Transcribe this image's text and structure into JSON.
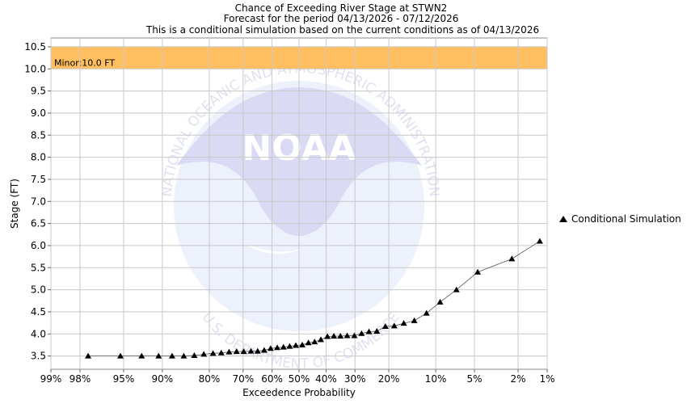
{
  "chart_data": {
    "type": "line",
    "title": [
      "Chance of Exceeding River Stage at STWN2",
      "Forecast for the period 04/13/2026 - 07/12/2026",
      "This is a conditional simulation based on the current conditions as of 04/13/2026"
    ],
    "xlabel": "Exceedence Probability",
    "ylabel": "Stage (FT)",
    "x_scale": "normal-probability",
    "x_range": [
      99,
      1
    ],
    "x_ticks": [
      {
        "value": 99,
        "label": "99%"
      },
      {
        "value": 98,
        "label": "98%"
      },
      {
        "value": 95,
        "label": "95%"
      },
      {
        "value": 90,
        "label": "90%"
      },
      {
        "value": 80,
        "label": "80%"
      },
      {
        "value": 70,
        "label": "70%"
      },
      {
        "value": 60,
        "label": "60%"
      },
      {
        "value": 50,
        "label": "50%"
      },
      {
        "value": 40,
        "label": "40%"
      },
      {
        "value": 30,
        "label": "30%"
      },
      {
        "value": 20,
        "label": "20%"
      },
      {
        "value": 10,
        "label": "10%"
      },
      {
        "value": 5,
        "label": "5%"
      },
      {
        "value": 2,
        "label": "2%"
      },
      {
        "value": 1,
        "label": "1%"
      }
    ],
    "ylim": [
      3.2,
      10.7
    ],
    "y_ticks": [
      {
        "value": 3.5,
        "label": "3.5"
      },
      {
        "value": 4.0,
        "label": "4.0"
      },
      {
        "value": 4.5,
        "label": "4.5"
      },
      {
        "value": 5.0,
        "label": "5.0"
      },
      {
        "value": 5.5,
        "label": "5.5"
      },
      {
        "value": 6.0,
        "label": "6.0"
      },
      {
        "value": 6.5,
        "label": "6.5"
      },
      {
        "value": 7.0,
        "label": "7.0"
      },
      {
        "value": 7.5,
        "label": "7.5"
      },
      {
        "value": 8.0,
        "label": "8.0"
      },
      {
        "value": 8.5,
        "label": "8.5"
      },
      {
        "value": 9.0,
        "label": "9.0"
      },
      {
        "value": 9.5,
        "label": "9.5"
      },
      {
        "value": 10.0,
        "label": "10.0"
      },
      {
        "value": 10.5,
        "label": "10.5"
      }
    ],
    "grid": true,
    "legend_position": "right",
    "thresholds": [
      {
        "label": "Minor:10.0 FT",
        "from": 10.0,
        "to": 10.5,
        "color": "#FFBF60"
      }
    ],
    "series": [
      {
        "name": "Conditional Simulation",
        "color": "#000000",
        "marker": "triangle",
        "points": [
          {
            "x": 97.6,
            "y": 3.5
          },
          {
            "x": 95.3,
            "y": 3.5
          },
          {
            "x": 93.0,
            "y": 3.5
          },
          {
            "x": 90.6,
            "y": 3.5
          },
          {
            "x": 88.3,
            "y": 3.5
          },
          {
            "x": 86.0,
            "y": 3.5
          },
          {
            "x": 83.7,
            "y": 3.51
          },
          {
            "x": 81.4,
            "y": 3.54
          },
          {
            "x": 79.0,
            "y": 3.56
          },
          {
            "x": 76.7,
            "y": 3.57
          },
          {
            "x": 74.4,
            "y": 3.59
          },
          {
            "x": 72.1,
            "y": 3.6
          },
          {
            "x": 69.8,
            "y": 3.6
          },
          {
            "x": 67.4,
            "y": 3.61
          },
          {
            "x": 65.1,
            "y": 3.61
          },
          {
            "x": 62.8,
            "y": 3.63
          },
          {
            "x": 60.5,
            "y": 3.67
          },
          {
            "x": 58.1,
            "y": 3.69
          },
          {
            "x": 55.8,
            "y": 3.7
          },
          {
            "x": 53.5,
            "y": 3.72
          },
          {
            "x": 51.2,
            "y": 3.74
          },
          {
            "x": 48.8,
            "y": 3.75
          },
          {
            "x": 46.5,
            "y": 3.8
          },
          {
            "x": 44.2,
            "y": 3.82
          },
          {
            "x": 41.9,
            "y": 3.87
          },
          {
            "x": 39.5,
            "y": 3.94
          },
          {
            "x": 37.2,
            "y": 3.95
          },
          {
            "x": 34.9,
            "y": 3.95
          },
          {
            "x": 32.6,
            "y": 3.96
          },
          {
            "x": 30.2,
            "y": 3.96
          },
          {
            "x": 27.9,
            "y": 4.01
          },
          {
            "x": 25.6,
            "y": 4.05
          },
          {
            "x": 23.3,
            "y": 4.06
          },
          {
            "x": 20.9,
            "y": 4.17
          },
          {
            "x": 18.6,
            "y": 4.18
          },
          {
            "x": 16.3,
            "y": 4.24
          },
          {
            "x": 14.0,
            "y": 4.3
          },
          {
            "x": 11.6,
            "y": 4.47
          },
          {
            "x": 9.3,
            "y": 4.72
          },
          {
            "x": 7.0,
            "y": 5.0
          },
          {
            "x": 4.7,
            "y": 5.4
          },
          {
            "x": 2.3,
            "y": 5.7
          },
          {
            "x": 1.2,
            "y": 6.1
          }
        ]
      }
    ]
  },
  "watermark": {
    "top_arc_text": "NATIONAL OCEANIC AND ATMOSPHERIC ADMINISTRATION",
    "bottom_arc_text": "U.S. DEPARTMENT OF COMMERCE",
    "center_text": "NOAA"
  }
}
